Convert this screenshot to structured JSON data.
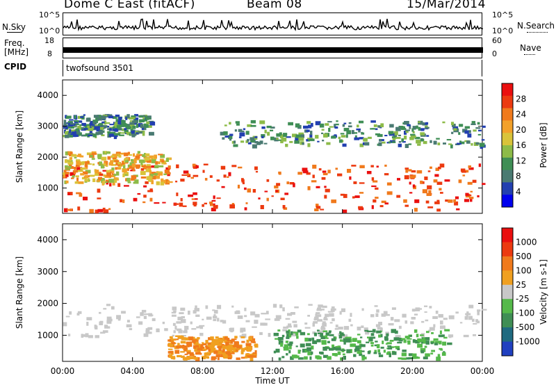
{
  "header": {
    "station": "Dome C East (fitACF)",
    "beam": "Beam 08",
    "date": "15/Mar/2014"
  },
  "noise_panel": {
    "left_label": "N.Sky",
    "right_label": "N.Search",
    "tick_top": "10^5",
    "tick_bottom": "10^0"
  },
  "freq_panel": {
    "left_label_1": "Freq.",
    "left_label_2": "[MHz]",
    "tick_top": "18",
    "tick_bottom": "8",
    "right_label": "Nave",
    "right_tick_top": "60",
    "right_tick_bottom": "0"
  },
  "cpid_panel": {
    "left_label": "CPID",
    "value": "twofsound 3501"
  },
  "chart_data": [
    {
      "type": "heatmap",
      "title": "",
      "quantity": "Power",
      "xlabel": "Time UT",
      "ylabel": "Slant Range [km]",
      "xlim": [
        "00:00",
        "24:00"
      ],
      "ylim": [
        180,
        4500
      ],
      "x_tick_labels": [
        "00:00",
        "04:00",
        "08:00",
        "12:00",
        "16:00",
        "20:00",
        "00:00"
      ],
      "y_tick_labels": [
        "1000",
        "2000",
        "3000",
        "4000"
      ],
      "colorbar": {
        "label": "Power [dB]",
        "range": [
          0,
          32
        ],
        "tick_labels": [
          "4",
          "8",
          "12",
          "16",
          "20",
          "24",
          "28"
        ],
        "colors": [
          "#0000ee",
          "#223fb0",
          "#4a7a72",
          "#3f8e55",
          "#8dbb48",
          "#d9c33a",
          "#f2a12a",
          "#f07a1c",
          "#ec3a10",
          "#ea0f0f"
        ]
      },
      "features": [
        {
          "time_h": [
            0,
            24
          ],
          "range_km": [
            300,
            1800
          ],
          "level": "high",
          "note": "dense red/orange band"
        },
        {
          "time_h": [
            0,
            6
          ],
          "range_km": [
            1200,
            2200
          ],
          "level": "medium",
          "note": "orange/yellow band"
        },
        {
          "time_h": [
            0,
            5
          ],
          "range_km": [
            2700,
            3400
          ],
          "level": "low",
          "note": "green/blue patches"
        },
        {
          "time_h": [
            9,
            24
          ],
          "range_km": [
            2400,
            3200
          ],
          "level": "low",
          "note": "scattered green echoes"
        }
      ]
    },
    {
      "type": "heatmap",
      "title": "",
      "quantity": "Velocity",
      "xlabel": "Time UT",
      "ylabel": "Slant Range [km]",
      "xlim": [
        "00:00",
        "24:00"
      ],
      "ylim": [
        180,
        4500
      ],
      "x_tick_labels": [
        "00:00",
        "04:00",
        "08:00",
        "12:00",
        "16:00",
        "20:00",
        "00:00"
      ],
      "y_tick_labels": [
        "1000",
        "2000",
        "3000",
        "4000"
      ],
      "colorbar": {
        "label": "Velocity [m s-1]",
        "tick_labels": [
          "1000",
          "500",
          "100",
          "25",
          "-25",
          "-100",
          "-500",
          "-1000"
        ],
        "colors": [
          "#2040c0",
          "#1f6a80",
          "#3f8e55",
          "#55b94a",
          "#c8c8c8",
          "#f0a020",
          "#f07a1c",
          "#ec3a10",
          "#ea0f0f"
        ]
      },
      "features": [
        {
          "time_h": [
            0,
            24
          ],
          "range_km": [
            1000,
            2000
          ],
          "level": "near-zero",
          "note": "grey band"
        },
        {
          "time_h": [
            6,
            11
          ],
          "range_km": [
            300,
            1000
          ],
          "level": "negative",
          "note": "orange region"
        },
        {
          "time_h": [
            12,
            22
          ],
          "range_km": [
            300,
            1200
          ],
          "level": "positive",
          "note": "dark and light green region"
        }
      ]
    }
  ],
  "colors": {
    "grey": "#c8c8c8"
  }
}
